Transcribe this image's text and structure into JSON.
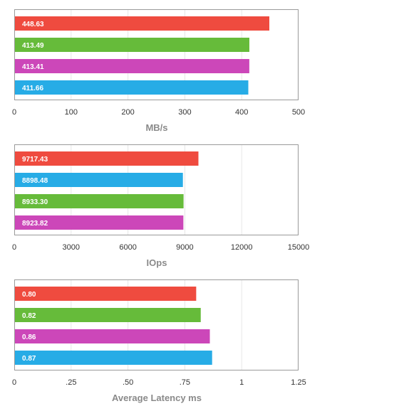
{
  "colors": {
    "red": "#EF4B3F",
    "green": "#66BB3A",
    "magenta": "#CC47B9",
    "blue": "#27ACE6",
    "grid": "#e6e6e6",
    "frame": "#9a9a9a"
  },
  "chart_data": [
    {
      "type": "bar",
      "orientation": "horizontal",
      "xlabel": "MB/s",
      "xlim": [
        0,
        500
      ],
      "ticks": [
        "0",
        "100",
        "200",
        "300",
        "400",
        "500"
      ],
      "bars": [
        {
          "label": "448.63",
          "value": 448.63,
          "color": "red"
        },
        {
          "label": "413.49",
          "value": 413.49,
          "color": "green"
        },
        {
          "label": "413.41",
          "value": 413.41,
          "color": "magenta"
        },
        {
          "label": "411.66",
          "value": 411.66,
          "color": "blue"
        }
      ],
      "grid": true
    },
    {
      "type": "bar",
      "orientation": "horizontal",
      "xlabel": "IOps",
      "xlim": [
        0,
        15000
      ],
      "ticks": [
        "0",
        "3000",
        "6000",
        "9000",
        "12000",
        "15000"
      ],
      "bars": [
        {
          "label": "9717.43",
          "value": 9717.43,
          "color": "red"
        },
        {
          "label": "8898.48",
          "value": 8898.48,
          "color": "blue"
        },
        {
          "label": "8933.30",
          "value": 8933.3,
          "color": "green"
        },
        {
          "label": "8923.82",
          "value": 8923.82,
          "color": "magenta"
        }
      ],
      "grid": true
    },
    {
      "type": "bar",
      "orientation": "horizontal",
      "xlabel": "Average Latency ms",
      "xlim": [
        0,
        1.25
      ],
      "ticks": [
        "0",
        ".25",
        ".50",
        ".75",
        "1",
        "1.25"
      ],
      "bars": [
        {
          "label": "0.80",
          "value": 0.8,
          "color": "red"
        },
        {
          "label": "0.82",
          "value": 0.82,
          "color": "green"
        },
        {
          "label": "0.86",
          "value": 0.86,
          "color": "magenta"
        },
        {
          "label": "0.87",
          "value": 0.87,
          "color": "blue"
        }
      ],
      "grid": true
    }
  ]
}
